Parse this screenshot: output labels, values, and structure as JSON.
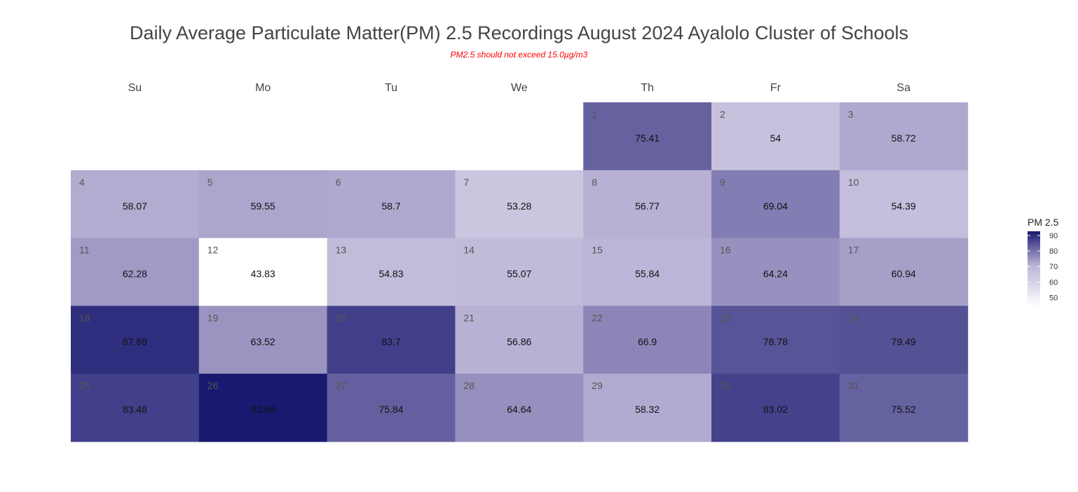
{
  "chart_data": {
    "type": "heatmap",
    "title": "Daily Average Particulate Matter(PM) 2.5 Recordings August 2024 Ayalolo Cluster of Schools",
    "subtitle": "PM2.5 should not exceed 15.0µg/m3",
    "weekdays": [
      "Su",
      "Mo",
      "Tu",
      "We",
      "Th",
      "Fr",
      "Sa"
    ],
    "first_weekday_index": 4,
    "days": [
      1,
      2,
      3,
      4,
      5,
      6,
      7,
      8,
      9,
      10,
      11,
      12,
      13,
      14,
      15,
      16,
      17,
      18,
      19,
      20,
      21,
      22,
      23,
      24,
      25,
      26,
      27,
      28,
      29,
      30,
      31
    ],
    "values": [
      75.41,
      54,
      58.72,
      58.07,
      59.55,
      58.7,
      53.28,
      56.77,
      69.04,
      54.39,
      62.28,
      43.83,
      54.83,
      55.07,
      55.84,
      64.24,
      60.94,
      87.69,
      63.52,
      83.7,
      56.86,
      66.9,
      78.78,
      79.49,
      83.48,
      92.69,
      75.84,
      64.64,
      58.32,
      83.02,
      75.52
    ],
    "value_labels": [
      "75.41",
      "54",
      "58.72",
      "58.07",
      "59.55",
      "58.7",
      "53.28",
      "56.77",
      "69.04",
      "54.39",
      "62.28",
      "43.83",
      "54.83",
      "55.07",
      "55.84",
      "64.24",
      "60.94",
      "87.69",
      "63.52",
      "83.7",
      "56.86",
      "66.9",
      "78.78",
      "79.49",
      "83.48",
      "92.69",
      "75.84",
      "64.64",
      "58.32",
      "83.02",
      "75.52"
    ],
    "legend": {
      "title": "PM 2.5",
      "ticks": [
        90,
        80,
        70,
        60,
        50
      ],
      "range": [
        43.83,
        92.69
      ],
      "position": "right"
    },
    "color_scale": {
      "low": "#ffffff",
      "mid": "#bcb4d6",
      "high": "#191970"
    }
  }
}
